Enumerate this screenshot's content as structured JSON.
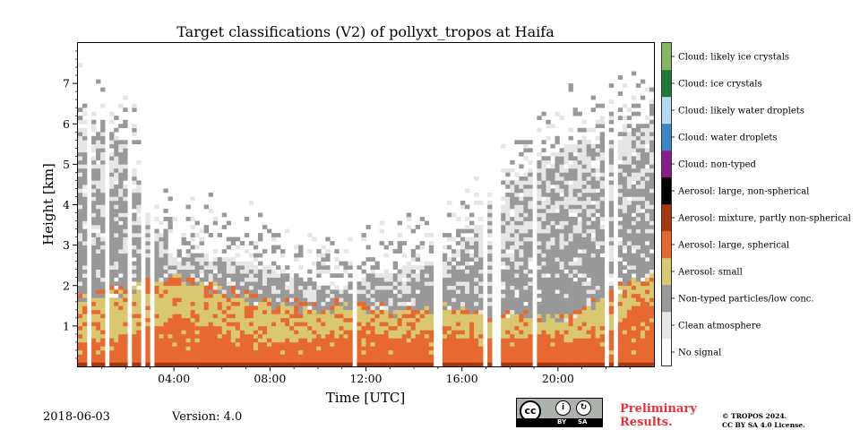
{
  "chart_data": {
    "type": "heatmap",
    "title": "Target classifications (V2) of pollyxt_tropos at Haifa",
    "xlabel": "Time [UTC]",
    "ylabel": "Height [km]",
    "xlim": [
      0,
      24
    ],
    "ylim": [
      0,
      8
    ],
    "x_ticks": [
      {
        "value": 4,
        "label": "04:00"
      },
      {
        "value": 8,
        "label": "08:00"
      },
      {
        "value": 12,
        "label": "12:00"
      },
      {
        "value": 16,
        "label": "16:00"
      },
      {
        "value": 20,
        "label": "20:00"
      }
    ],
    "y_ticks": [
      {
        "value": 1,
        "label": "1"
      },
      {
        "value": 2,
        "label": "2"
      },
      {
        "value": 3,
        "label": "3"
      },
      {
        "value": 4,
        "label": "4"
      },
      {
        "value": 5,
        "label": "5"
      },
      {
        "value": 6,
        "label": "6"
      },
      {
        "value": 7,
        "label": "7"
      }
    ],
    "legend_position": "right colorbar",
    "classes": [
      {
        "label": "No signal",
        "color": "#ffffff"
      },
      {
        "label": "Clean atmosphere",
        "color": "#e6e6e6"
      },
      {
        "label": "Non-typed particles/low conc.",
        "color": "#999999"
      },
      {
        "label": "Aerosol: small",
        "color": "#d9c870"
      },
      {
        "label": "Aerosol: large, spherical",
        "color": "#e8692f"
      },
      {
        "label": "Aerosol: mixture, partly non-spherical",
        "color": "#a8380e"
      },
      {
        "label": "Aerosol: large, non-spherical",
        "color": "#000000"
      },
      {
        "label": "Cloud: non-typed",
        "color": "#8b1c8c"
      },
      {
        "label": "Cloud: water droplets",
        "color": "#3a87c8"
      },
      {
        "label": "Cloud: likely water droplets",
        "color": "#b5dcf5"
      },
      {
        "label": "Cloud: ice crystals",
        "color": "#1c7a36"
      },
      {
        "label": "Cloud: likely ice crystals",
        "color": "#86b765"
      }
    ],
    "profile_hours": [
      0,
      1,
      2,
      3,
      4,
      5,
      6,
      7,
      8,
      9,
      10,
      11,
      12,
      13,
      14,
      15,
      16,
      17,
      18,
      19,
      20,
      21,
      22,
      23,
      24
    ],
    "large_spherical_top_km": [
      0.6,
      0.7,
      0.8,
      1.0,
      1.3,
      1.1,
      0.9,
      0.8,
      0.7,
      0.7,
      0.7,
      0.8,
      0.9,
      0.8,
      0.8,
      0.9,
      0.8,
      0.7,
      0.8,
      0.8,
      0.8,
      0.7,
      0.9,
      1.4,
      1.5
    ],
    "small_aerosol_top_km": [
      1.7,
      1.8,
      1.9,
      2.1,
      2.2,
      2.1,
      1.9,
      1.7,
      1.6,
      1.5,
      1.4,
      1.5,
      1.5,
      1.4,
      1.4,
      1.5,
      1.4,
      1.3,
      1.3,
      1.2,
      1.2,
      1.3,
      1.8,
      2.1,
      2.3
    ],
    "non_typed_top_km": [
      6.0,
      5.8,
      5.6,
      3.6,
      2.6,
      2.8,
      2.7,
      2.6,
      2.4,
      2.2,
      2.0,
      2.0,
      2.2,
      2.3,
      2.5,
      2.6,
      3.0,
      3.6,
      4.4,
      5.0,
      5.4,
      5.6,
      5.7,
      5.8,
      6.0
    ],
    "no_signal_gaps_hours": [
      0.45,
      1.15,
      2.2,
      2.75,
      3.05,
      3.15,
      11.5,
      15.0,
      16.9,
      17.3,
      17.6,
      19.0,
      22.05,
      22.45
    ]
  },
  "footer": {
    "date": "2018-06-03",
    "version": "Version: 4.0",
    "preliminary": [
      "Preliminary",
      "Results."
    ],
    "copyright": [
      "© TROPOS 2024.",
      "CC BY SA 4.0 License."
    ],
    "cc_logo": {
      "main": "cc",
      "by": "BY",
      "sa": "SA"
    }
  }
}
